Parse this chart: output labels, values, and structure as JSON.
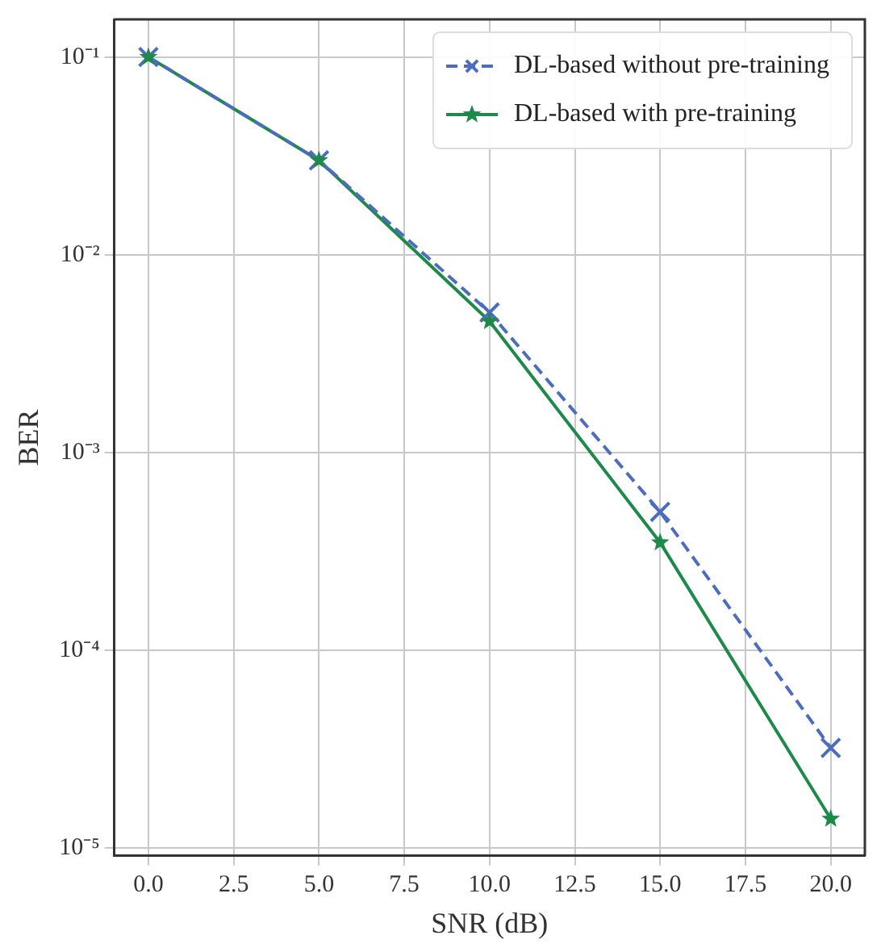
{
  "chart_data": {
    "type": "line",
    "xlabel": "SNR (dB)",
    "ylabel": "BER",
    "x": [
      0,
      5,
      10,
      15,
      20
    ],
    "series": [
      {
        "name": "DL-based without pre-training",
        "color": "#4c6cc0",
        "values": [
          0.1,
          0.03,
          0.0051,
          0.0005,
          3.2e-05
        ],
        "marker": "cross",
        "line_style": "dashed"
      },
      {
        "name": "DL-based with pre-training",
        "color": "#1e8a4a",
        "values": [
          0.1,
          0.03,
          0.0046,
          0.00035,
          1.4e-05
        ],
        "marker": "star",
        "line_style": "solid"
      }
    ],
    "log": "y",
    "xlim": [
      -1,
      21
    ],
    "xticks": [
      {
        "value": 0,
        "label": "0.0"
      },
      {
        "value": 2.5,
        "label": "2.5"
      },
      {
        "value": 5,
        "label": "5.0"
      },
      {
        "value": 7.5,
        "label": "7.5"
      },
      {
        "value": 10,
        "label": "10.0"
      },
      {
        "value": 12.5,
        "label": "12.5"
      },
      {
        "value": 15,
        "label": "15.0"
      },
      {
        "value": 17.5,
        "label": "17.5"
      },
      {
        "value": 20,
        "label": "20.0"
      }
    ],
    "ylim": [
      9.1e-06,
      0.155
    ],
    "yticks": [
      {
        "value": 0.1,
        "label": "10⁻¹"
      },
      {
        "value": 0.01,
        "label": "10⁻²"
      },
      {
        "value": 0.001,
        "label": "10⁻³"
      },
      {
        "value": 0.0001,
        "label": "10⁻⁴"
      },
      {
        "value": 1e-05,
        "label": "10⁻⁵"
      }
    ],
    "grid": true,
    "legend": "top right"
  }
}
